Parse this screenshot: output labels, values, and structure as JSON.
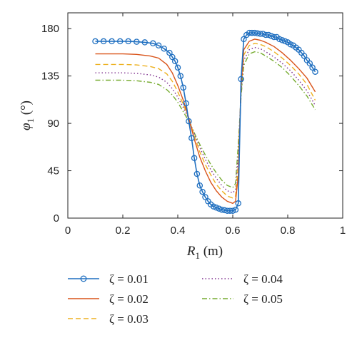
{
  "chart_data": {
    "type": "line",
    "title": "",
    "xlabel": "R",
    "xlabel_sub": "1",
    "xlabel_unit": " (m)",
    "ylabel": "φ",
    "ylabel_sub": "1",
    "ylabel_unit": " (°)",
    "xlim": [
      0,
      1
    ],
    "ylim": [
      0,
      195
    ],
    "xticks": [
      "0",
      "0.2",
      "0.4",
      "0.6",
      "0.8",
      "1"
    ],
    "yticks": [
      "0",
      "45",
      "90",
      "135",
      "180"
    ],
    "legend_position": "bottom",
    "grid": false,
    "series": [
      {
        "name": "ζ = 0.01",
        "color": "#1f6fc0",
        "style": "solid-circle",
        "points": [
          [
            0.1,
            168
          ],
          [
            0.13,
            168
          ],
          [
            0.16,
            168
          ],
          [
            0.19,
            168
          ],
          [
            0.22,
            168
          ],
          [
            0.25,
            167.5
          ],
          [
            0.28,
            167
          ],
          [
            0.31,
            166
          ],
          [
            0.33,
            164
          ],
          [
            0.35,
            161
          ],
          [
            0.37,
            157
          ],
          [
            0.38,
            153
          ],
          [
            0.39,
            149
          ],
          [
            0.4,
            143
          ],
          [
            0.41,
            135
          ],
          [
            0.42,
            124
          ],
          [
            0.43,
            109
          ],
          [
            0.44,
            92
          ],
          [
            0.45,
            76
          ],
          [
            0.46,
            57
          ],
          [
            0.47,
            42
          ],
          [
            0.48,
            31
          ],
          [
            0.49,
            25
          ],
          [
            0.5,
            20
          ],
          [
            0.51,
            16
          ],
          [
            0.52,
            13
          ],
          [
            0.53,
            11
          ],
          [
            0.54,
            10
          ],
          [
            0.55,
            9
          ],
          [
            0.56,
            8
          ],
          [
            0.57,
            7.5
          ],
          [
            0.58,
            7
          ],
          [
            0.59,
            7
          ],
          [
            0.6,
            7
          ],
          [
            0.61,
            8
          ],
          [
            0.62,
            14
          ],
          [
            0.63,
            132
          ],
          [
            0.64,
            170
          ],
          [
            0.65,
            174
          ],
          [
            0.66,
            176
          ],
          [
            0.67,
            176
          ],
          [
            0.68,
            176
          ],
          [
            0.69,
            175.5
          ],
          [
            0.7,
            175
          ],
          [
            0.71,
            175
          ],
          [
            0.72,
            174
          ],
          [
            0.73,
            174
          ],
          [
            0.74,
            173
          ],
          [
            0.75,
            172
          ],
          [
            0.76,
            172
          ],
          [
            0.77,
            170
          ],
          [
            0.78,
            169
          ],
          [
            0.79,
            168
          ],
          [
            0.8,
            167
          ],
          [
            0.81,
            165
          ],
          [
            0.82,
            164
          ],
          [
            0.83,
            162
          ],
          [
            0.84,
            160
          ],
          [
            0.85,
            157
          ],
          [
            0.86,
            154
          ],
          [
            0.87,
            150
          ],
          [
            0.88,
            147
          ],
          [
            0.89,
            143
          ],
          [
            0.9,
            139
          ]
        ]
      },
      {
        "name": "ζ = 0.02",
        "color": "#d95319",
        "style": "solid",
        "points": [
          [
            0.1,
            156
          ],
          [
            0.2,
            156
          ],
          [
            0.25,
            155.5
          ],
          [
            0.3,
            154
          ],
          [
            0.33,
            152
          ],
          [
            0.36,
            146
          ],
          [
            0.38,
            138
          ],
          [
            0.4,
            126
          ],
          [
            0.42,
            112
          ],
          [
            0.44,
            95
          ],
          [
            0.46,
            75
          ],
          [
            0.48,
            58
          ],
          [
            0.5,
            45
          ],
          [
            0.52,
            34
          ],
          [
            0.54,
            26
          ],
          [
            0.56,
            20
          ],
          [
            0.58,
            16
          ],
          [
            0.6,
            14
          ],
          [
            0.61,
            16
          ],
          [
            0.62,
            40
          ],
          [
            0.63,
            125
          ],
          [
            0.64,
            160
          ],
          [
            0.66,
            168
          ],
          [
            0.68,
            170
          ],
          [
            0.7,
            169
          ],
          [
            0.72,
            167
          ],
          [
            0.75,
            163
          ],
          [
            0.78,
            157
          ],
          [
            0.81,
            150
          ],
          [
            0.84,
            142
          ],
          [
            0.87,
            133
          ],
          [
            0.9,
            120
          ]
        ]
      },
      {
        "name": "ζ = 0.03",
        "color": "#edb120",
        "style": "dashed",
        "points": [
          [
            0.1,
            146
          ],
          [
            0.2,
            146
          ],
          [
            0.25,
            145.5
          ],
          [
            0.3,
            144
          ],
          [
            0.33,
            142
          ],
          [
            0.36,
            137
          ],
          [
            0.38,
            130
          ],
          [
            0.4,
            120
          ],
          [
            0.42,
            108
          ],
          [
            0.44,
            95
          ],
          [
            0.46,
            78
          ],
          [
            0.48,
            63
          ],
          [
            0.5,
            51
          ],
          [
            0.52,
            41
          ],
          [
            0.54,
            32
          ],
          [
            0.56,
            26
          ],
          [
            0.58,
            21
          ],
          [
            0.6,
            19
          ],
          [
            0.61,
            21
          ],
          [
            0.62,
            50
          ],
          [
            0.63,
            122
          ],
          [
            0.64,
            155
          ],
          [
            0.66,
            164
          ],
          [
            0.68,
            166
          ],
          [
            0.7,
            165
          ],
          [
            0.72,
            163
          ],
          [
            0.75,
            158
          ],
          [
            0.78,
            152
          ],
          [
            0.81,
            145
          ],
          [
            0.84,
            137
          ],
          [
            0.87,
            127
          ],
          [
            0.9,
            112
          ]
        ]
      },
      {
        "name": "ζ = 0.04",
        "color": "#7e2f8e",
        "style": "dotted",
        "points": [
          [
            0.1,
            138
          ],
          [
            0.2,
            138
          ],
          [
            0.25,
            137.5
          ],
          [
            0.3,
            136
          ],
          [
            0.33,
            134
          ],
          [
            0.36,
            129
          ],
          [
            0.38,
            123
          ],
          [
            0.4,
            115
          ],
          [
            0.42,
            105
          ],
          [
            0.44,
            94
          ],
          [
            0.46,
            80
          ],
          [
            0.48,
            67
          ],
          [
            0.5,
            56
          ],
          [
            0.52,
            46
          ],
          [
            0.54,
            38
          ],
          [
            0.56,
            31
          ],
          [
            0.58,
            26
          ],
          [
            0.6,
            24
          ],
          [
            0.61,
            27
          ],
          [
            0.62,
            60
          ],
          [
            0.63,
            118
          ],
          [
            0.64,
            150
          ],
          [
            0.66,
            160
          ],
          [
            0.68,
            162
          ],
          [
            0.7,
            161
          ],
          [
            0.72,
            158
          ],
          [
            0.75,
            153
          ],
          [
            0.78,
            147
          ],
          [
            0.81,
            140
          ],
          [
            0.84,
            131
          ],
          [
            0.87,
            121
          ],
          [
            0.9,
            107
          ]
        ]
      },
      {
        "name": "ζ = 0.05",
        "color": "#77ac30",
        "style": "dashdot",
        "points": [
          [
            0.1,
            131
          ],
          [
            0.2,
            131
          ],
          [
            0.25,
            130.5
          ],
          [
            0.3,
            129
          ],
          [
            0.33,
            127
          ],
          [
            0.36,
            122
          ],
          [
            0.38,
            117
          ],
          [
            0.4,
            110
          ],
          [
            0.42,
            101
          ],
          [
            0.44,
            92
          ],
          [
            0.46,
            81
          ],
          [
            0.48,
            70
          ],
          [
            0.5,
            60
          ],
          [
            0.52,
            51
          ],
          [
            0.54,
            43
          ],
          [
            0.56,
            36
          ],
          [
            0.58,
            31
          ],
          [
            0.6,
            29
          ],
          [
            0.61,
            33
          ],
          [
            0.62,
            70
          ],
          [
            0.63,
            115
          ],
          [
            0.64,
            145
          ],
          [
            0.66,
            156
          ],
          [
            0.68,
            158
          ],
          [
            0.7,
            157
          ],
          [
            0.72,
            154
          ],
          [
            0.75,
            149
          ],
          [
            0.78,
            143
          ],
          [
            0.81,
            135
          ],
          [
            0.84,
            126
          ],
          [
            0.87,
            116
          ],
          [
            0.9,
            103
          ]
        ]
      }
    ]
  }
}
